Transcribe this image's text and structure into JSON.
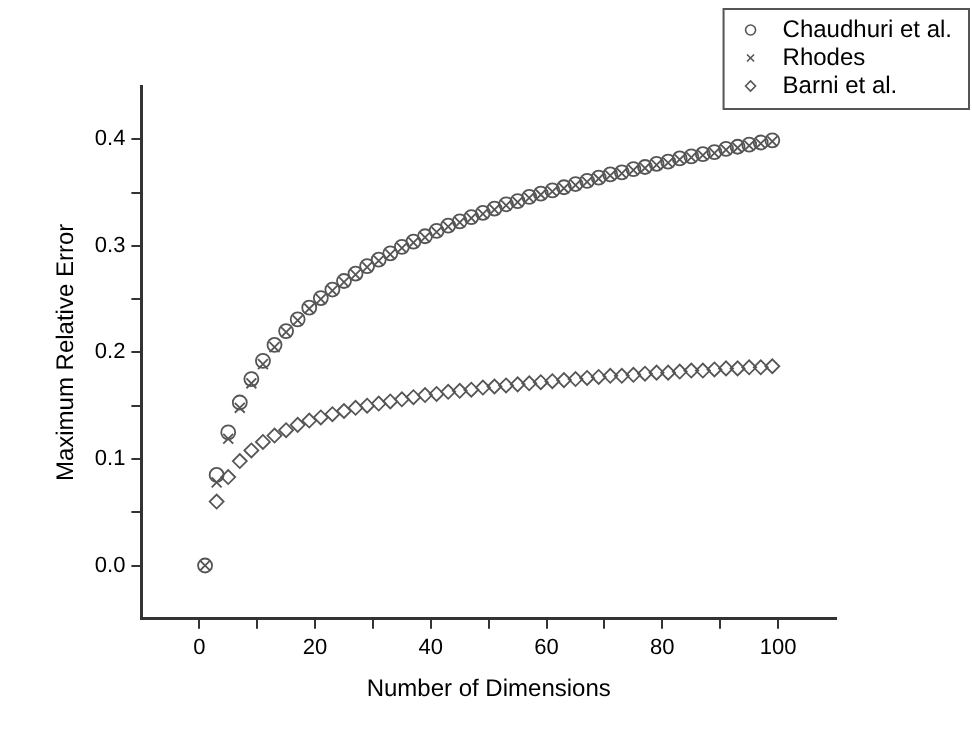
{
  "chart_data": {
    "type": "scatter",
    "xlabel": "Number of Dimensions",
    "ylabel": "Maximum Relative Error",
    "x": [
      1,
      3,
      5,
      7,
      9,
      11,
      13,
      15,
      17,
      19,
      21,
      23,
      25,
      27,
      29,
      31,
      33,
      35,
      37,
      39,
      41,
      43,
      45,
      47,
      49,
      51,
      53,
      55,
      57,
      59,
      61,
      63,
      65,
      67,
      69,
      71,
      73,
      75,
      77,
      79,
      81,
      83,
      85,
      87,
      89,
      91,
      93,
      95,
      97,
      99
    ],
    "series": [
      {
        "name": "Chaudhuri et al.",
        "color": "#555555",
        "marker": "circle",
        "values": [
          0,
          0.085,
          0.125,
          0.153,
          0.175,
          0.192,
          0.207,
          0.22,
          0.231,
          0.242,
          0.251,
          0.259,
          0.267,
          0.274,
          0.281,
          0.287,
          0.293,
          0.299,
          0.304,
          0.309,
          0.314,
          0.319,
          0.323,
          0.327,
          0.331,
          0.335,
          0.339,
          0.342,
          0.346,
          0.349,
          0.352,
          0.355,
          0.358,
          0.361,
          0.364,
          0.367,
          0.369,
          0.372,
          0.374,
          0.377,
          0.379,
          0.382,
          0.384,
          0.386,
          0.388,
          0.391,
          0.393,
          0.395,
          0.397,
          0.399
        ]
      },
      {
        "name": "Rhodes",
        "color": "#555555",
        "marker": "cross",
        "values": [
          0,
          0.078,
          0.119,
          0.148,
          0.171,
          0.189,
          0.205,
          0.219,
          0.23,
          0.241,
          0.25,
          0.258,
          0.266,
          0.273,
          0.28,
          0.286,
          0.292,
          0.298,
          0.303,
          0.308,
          0.313,
          0.318,
          0.322,
          0.326,
          0.33,
          0.334,
          0.338,
          0.341,
          0.345,
          0.348,
          0.351,
          0.354,
          0.357,
          0.36,
          0.363,
          0.366,
          0.368,
          0.371,
          0.373,
          0.376,
          0.378,
          0.381,
          0.383,
          0.385,
          0.387,
          0.39,
          0.392,
          0.394,
          0.396,
          0.398
        ]
      },
      {
        "name": "Barni et al.",
        "color": "#555555",
        "marker": "diamond",
        "values": [
          null,
          0.06,
          0.083,
          0.098,
          0.108,
          0.116,
          0.122,
          0.127,
          0.132,
          0.136,
          0.139,
          0.142,
          0.145,
          0.148,
          0.15,
          0.152,
          0.154,
          0.156,
          0.158,
          0.16,
          0.161,
          0.163,
          0.164,
          0.165,
          0.167,
          0.168,
          0.169,
          0.17,
          0.171,
          0.172,
          0.173,
          0.174,
          0.175,
          0.176,
          0.177,
          0.178,
          0.178,
          0.179,
          0.18,
          0.181,
          0.181,
          0.182,
          0.183,
          0.183,
          0.184,
          0.185,
          0.185,
          0.186,
          0.186,
          0.187
        ]
      }
    ],
    "xlim": [
      -10,
      110
    ],
    "xticks": [
      0,
      {
        "value": 10,
        "label": null
      },
      20,
      {
        "value": 30,
        "label": null
      },
      40,
      {
        "value": 50,
        "label": null
      },
      60,
      {
        "value": 70,
        "label": null
      },
      80,
      {
        "value": 90,
        "label": null
      },
      100
    ],
    "ylim": [
      -0.05,
      0.45
    ],
    "yticks": [
      {
        "value": 0,
        "label": "0.0"
      },
      {
        "value": 0.05,
        "label": null
      },
      {
        "value": 0.1,
        "label": "0.1"
      },
      {
        "value": 0.15,
        "label": null
      },
      {
        "value": 0.2,
        "label": "0.2"
      },
      {
        "value": 0.25,
        "label": null
      },
      {
        "value": 0.3,
        "label": "0.3"
      },
      {
        "value": 0.35,
        "label": null
      },
      {
        "value": 0.4,
        "label": "0.4"
      }
    ],
    "grid": false,
    "legend": "top right"
  }
}
